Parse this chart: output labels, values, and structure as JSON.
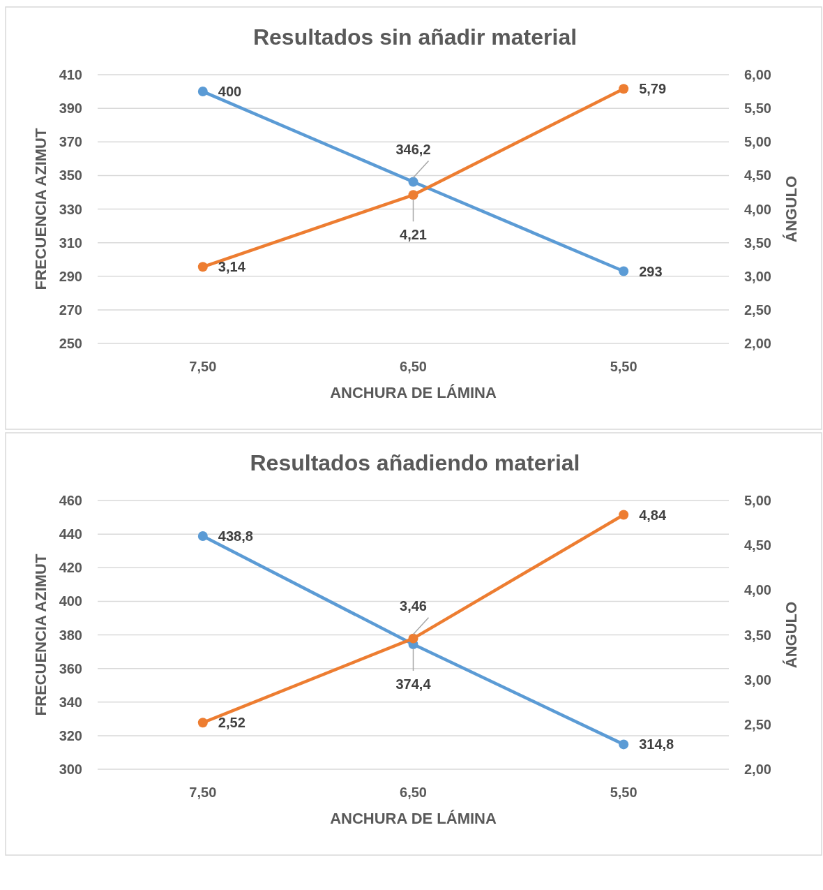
{
  "chart_data": [
    {
      "type": "line",
      "title": "Resultados sin añadir material",
      "xlabel": "ANCHURA DE LÁMINA",
      "ylabel": "FRECUENCIA AZIMUT",
      "y2label": "ÁNGULO",
      "categories": [
        "7,50",
        "6,50",
        "5,50"
      ],
      "series": [
        {
          "color": "#5b9bd5",
          "values": [
            400,
            346.2,
            293
          ],
          "value_labels": [
            "400",
            "346,2",
            "293"
          ]
        },
        {
          "color": "#ed7d31",
          "axis": "y2",
          "values": [
            3.14,
            4.21,
            5.79
          ],
          "value_labels": [
            "3,14",
            "4,21",
            "5,79"
          ]
        }
      ],
      "ylim": [
        250,
        410
      ],
      "yticks": [
        250,
        270,
        290,
        310,
        330,
        350,
        370,
        390,
        410
      ],
      "y2lim": [
        2,
        6
      ],
      "y2ticks": [
        {
          "value": 2,
          "label": "2,00"
        },
        {
          "value": 2.5,
          "label": "2,50"
        },
        {
          "value": 3,
          "label": "3,00"
        },
        {
          "value": 3.5,
          "label": "3,50"
        },
        {
          "value": 4,
          "label": "4,00"
        },
        {
          "value": 4.5,
          "label": "4,50"
        },
        {
          "value": 5,
          "label": "5,00"
        },
        {
          "value": 5.5,
          "label": "5,50"
        },
        {
          "value": 6,
          "label": "6,00"
        }
      ],
      "grid": "y",
      "marker": "circle",
      "line_style": "solid"
    },
    {
      "type": "line",
      "title": "Resultados añadiendo material",
      "xlabel": "ANCHURA DE LÁMINA",
      "ylabel": "FRECUENCIA AZIMUT",
      "y2label": "ÁNGULO",
      "categories": [
        "7,50",
        "6,50",
        "5,50"
      ],
      "series": [
        {
          "color": "#5b9bd5",
          "values": [
            438.8,
            374.4,
            314.8
          ],
          "value_labels": [
            "438,8",
            "374,4",
            "314,8"
          ]
        },
        {
          "color": "#ed7d31",
          "axis": "y2",
          "values": [
            2.52,
            3.46,
            4.84
          ],
          "value_labels": [
            "2,52",
            "3,46",
            "4,84"
          ]
        }
      ],
      "ylim": [
        300,
        460
      ],
      "yticks": [
        300,
        320,
        340,
        360,
        380,
        400,
        420,
        440,
        460
      ],
      "y2lim": [
        2,
        5
      ],
      "y2ticks": [
        {
          "value": 2,
          "label": "2,00"
        },
        {
          "value": 2.5,
          "label": "2,50"
        },
        {
          "value": 3,
          "label": "3,00"
        },
        {
          "value": 3.5,
          "label": "3,50"
        },
        {
          "value": 4,
          "label": "4,00"
        },
        {
          "value": 4.5,
          "label": "4,50"
        },
        {
          "value": 5,
          "label": "5,00"
        }
      ],
      "grid": "y",
      "marker": "circle",
      "line_style": "solid"
    }
  ]
}
